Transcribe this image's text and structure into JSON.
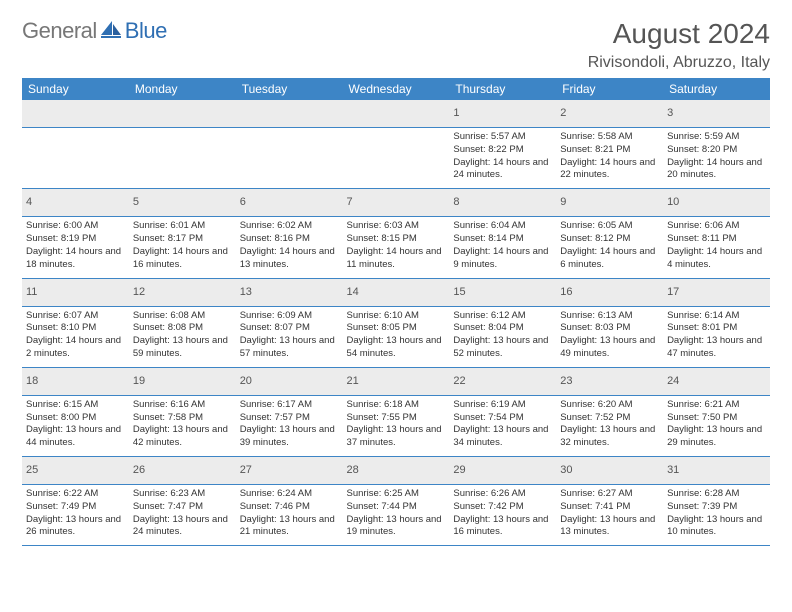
{
  "brand": {
    "part1": "General",
    "part2": "Blue"
  },
  "title": "August 2024",
  "location": "Rivisondoli, Abruzzo, Italy",
  "colors": {
    "header_bg": "#3d85c6",
    "header_text": "#ffffff",
    "daynum_bg": "#ececec",
    "daynum_text": "#555555",
    "cell_text": "#333333",
    "title_text": "#555555",
    "logo_gray": "#777777",
    "logo_blue": "#2f6fb3",
    "border": "#3d85c6",
    "page_bg": "#ffffff"
  },
  "font": {
    "family": "Arial",
    "header_size": 12,
    "cell_size": 9.5,
    "title_size": 28,
    "location_size": 16,
    "daynum_size": 11
  },
  "day_headers": [
    "Sunday",
    "Monday",
    "Tuesday",
    "Wednesday",
    "Thursday",
    "Friday",
    "Saturday"
  ],
  "weeks": [
    {
      "nums": [
        "",
        "",
        "",
        "",
        "1",
        "2",
        "3"
      ],
      "cells": [
        null,
        null,
        null,
        null,
        {
          "sunrise": "Sunrise: 5:57 AM",
          "sunset": "Sunset: 8:22 PM",
          "daylight": "Daylight: 14 hours and 24 minutes."
        },
        {
          "sunrise": "Sunrise: 5:58 AM",
          "sunset": "Sunset: 8:21 PM",
          "daylight": "Daylight: 14 hours and 22 minutes."
        },
        {
          "sunrise": "Sunrise: 5:59 AM",
          "sunset": "Sunset: 8:20 PM",
          "daylight": "Daylight: 14 hours and 20 minutes."
        }
      ]
    },
    {
      "nums": [
        "4",
        "5",
        "6",
        "7",
        "8",
        "9",
        "10"
      ],
      "cells": [
        {
          "sunrise": "Sunrise: 6:00 AM",
          "sunset": "Sunset: 8:19 PM",
          "daylight": "Daylight: 14 hours and 18 minutes."
        },
        {
          "sunrise": "Sunrise: 6:01 AM",
          "sunset": "Sunset: 8:17 PM",
          "daylight": "Daylight: 14 hours and 16 minutes."
        },
        {
          "sunrise": "Sunrise: 6:02 AM",
          "sunset": "Sunset: 8:16 PM",
          "daylight": "Daylight: 14 hours and 13 minutes."
        },
        {
          "sunrise": "Sunrise: 6:03 AM",
          "sunset": "Sunset: 8:15 PM",
          "daylight": "Daylight: 14 hours and 11 minutes."
        },
        {
          "sunrise": "Sunrise: 6:04 AM",
          "sunset": "Sunset: 8:14 PM",
          "daylight": "Daylight: 14 hours and 9 minutes."
        },
        {
          "sunrise": "Sunrise: 6:05 AM",
          "sunset": "Sunset: 8:12 PM",
          "daylight": "Daylight: 14 hours and 6 minutes."
        },
        {
          "sunrise": "Sunrise: 6:06 AM",
          "sunset": "Sunset: 8:11 PM",
          "daylight": "Daylight: 14 hours and 4 minutes."
        }
      ]
    },
    {
      "nums": [
        "11",
        "12",
        "13",
        "14",
        "15",
        "16",
        "17"
      ],
      "cells": [
        {
          "sunrise": "Sunrise: 6:07 AM",
          "sunset": "Sunset: 8:10 PM",
          "daylight": "Daylight: 14 hours and 2 minutes."
        },
        {
          "sunrise": "Sunrise: 6:08 AM",
          "sunset": "Sunset: 8:08 PM",
          "daylight": "Daylight: 13 hours and 59 minutes."
        },
        {
          "sunrise": "Sunrise: 6:09 AM",
          "sunset": "Sunset: 8:07 PM",
          "daylight": "Daylight: 13 hours and 57 minutes."
        },
        {
          "sunrise": "Sunrise: 6:10 AM",
          "sunset": "Sunset: 8:05 PM",
          "daylight": "Daylight: 13 hours and 54 minutes."
        },
        {
          "sunrise": "Sunrise: 6:12 AM",
          "sunset": "Sunset: 8:04 PM",
          "daylight": "Daylight: 13 hours and 52 minutes."
        },
        {
          "sunrise": "Sunrise: 6:13 AM",
          "sunset": "Sunset: 8:03 PM",
          "daylight": "Daylight: 13 hours and 49 minutes."
        },
        {
          "sunrise": "Sunrise: 6:14 AM",
          "sunset": "Sunset: 8:01 PM",
          "daylight": "Daylight: 13 hours and 47 minutes."
        }
      ]
    },
    {
      "nums": [
        "18",
        "19",
        "20",
        "21",
        "22",
        "23",
        "24"
      ],
      "cells": [
        {
          "sunrise": "Sunrise: 6:15 AM",
          "sunset": "Sunset: 8:00 PM",
          "daylight": "Daylight: 13 hours and 44 minutes."
        },
        {
          "sunrise": "Sunrise: 6:16 AM",
          "sunset": "Sunset: 7:58 PM",
          "daylight": "Daylight: 13 hours and 42 minutes."
        },
        {
          "sunrise": "Sunrise: 6:17 AM",
          "sunset": "Sunset: 7:57 PM",
          "daylight": "Daylight: 13 hours and 39 minutes."
        },
        {
          "sunrise": "Sunrise: 6:18 AM",
          "sunset": "Sunset: 7:55 PM",
          "daylight": "Daylight: 13 hours and 37 minutes."
        },
        {
          "sunrise": "Sunrise: 6:19 AM",
          "sunset": "Sunset: 7:54 PM",
          "daylight": "Daylight: 13 hours and 34 minutes."
        },
        {
          "sunrise": "Sunrise: 6:20 AM",
          "sunset": "Sunset: 7:52 PM",
          "daylight": "Daylight: 13 hours and 32 minutes."
        },
        {
          "sunrise": "Sunrise: 6:21 AM",
          "sunset": "Sunset: 7:50 PM",
          "daylight": "Daylight: 13 hours and 29 minutes."
        }
      ]
    },
    {
      "nums": [
        "25",
        "26",
        "27",
        "28",
        "29",
        "30",
        "31"
      ],
      "cells": [
        {
          "sunrise": "Sunrise: 6:22 AM",
          "sunset": "Sunset: 7:49 PM",
          "daylight": "Daylight: 13 hours and 26 minutes."
        },
        {
          "sunrise": "Sunrise: 6:23 AM",
          "sunset": "Sunset: 7:47 PM",
          "daylight": "Daylight: 13 hours and 24 minutes."
        },
        {
          "sunrise": "Sunrise: 6:24 AM",
          "sunset": "Sunset: 7:46 PM",
          "daylight": "Daylight: 13 hours and 21 minutes."
        },
        {
          "sunrise": "Sunrise: 6:25 AM",
          "sunset": "Sunset: 7:44 PM",
          "daylight": "Daylight: 13 hours and 19 minutes."
        },
        {
          "sunrise": "Sunrise: 6:26 AM",
          "sunset": "Sunset: 7:42 PM",
          "daylight": "Daylight: 13 hours and 16 minutes."
        },
        {
          "sunrise": "Sunrise: 6:27 AM",
          "sunset": "Sunset: 7:41 PM",
          "daylight": "Daylight: 13 hours and 13 minutes."
        },
        {
          "sunrise": "Sunrise: 6:28 AM",
          "sunset": "Sunset: 7:39 PM",
          "daylight": "Daylight: 13 hours and 10 minutes."
        }
      ]
    }
  ]
}
